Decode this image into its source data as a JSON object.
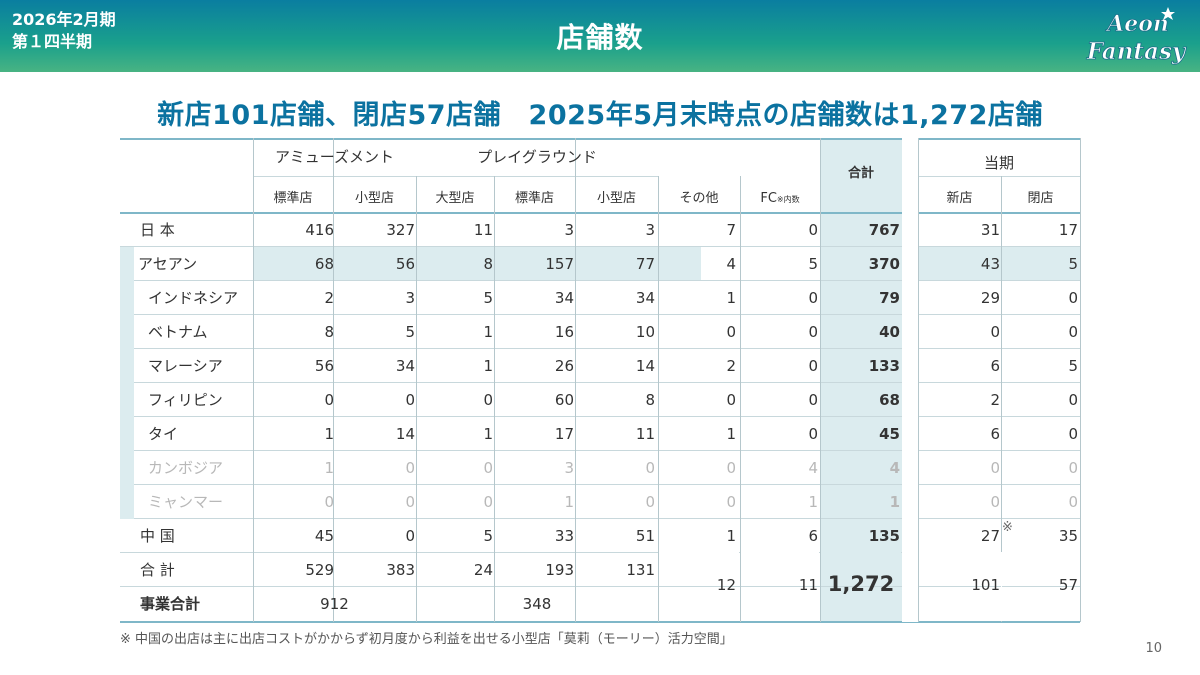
{
  "header": {
    "period_line1": "2026年2月期",
    "period_line2": "第１四半期",
    "title": "店舗数",
    "logo_line1": "Aeon",
    "logo_line2": "Fantasy"
  },
  "headline": "新店101店舗、閉店57店舗　2025年5月末時点の店舗数は1,272店舗",
  "table": {
    "groups": {
      "amusement": "アミューズメント",
      "playground": "プレイグラウンド",
      "other": "その他",
      "fc": "FC",
      "fc_note": "※内数",
      "total": "合計",
      "current": "当期"
    },
    "subheaders": {
      "amuse_std": "標準店",
      "amuse_small": "小型店",
      "play_large": "大型店",
      "play_std": "標準店",
      "play_small": "小型店",
      "new": "新店",
      "closed": "閉店"
    },
    "rows": [
      {
        "label": "日 本",
        "values": [
          "416",
          "327",
          "11",
          "3",
          "3",
          "7",
          "0",
          "767",
          "31",
          "17"
        ]
      },
      {
        "label": "アセアン",
        "values": [
          "68",
          "56",
          "8",
          "157",
          "77",
          "4",
          "5",
          "370",
          "43",
          "5"
        ]
      },
      {
        "label": "インドネシア",
        "values": [
          "2",
          "3",
          "5",
          "34",
          "34",
          "1",
          "0",
          "79",
          "29",
          "0"
        ]
      },
      {
        "label": "ベトナム",
        "values": [
          "8",
          "5",
          "1",
          "16",
          "10",
          "0",
          "0",
          "40",
          "0",
          "0"
        ]
      },
      {
        "label": "マレーシア",
        "values": [
          "56",
          "34",
          "1",
          "26",
          "14",
          "2",
          "0",
          "133",
          "6",
          "5"
        ]
      },
      {
        "label": "フィリピン",
        "values": [
          "0",
          "0",
          "0",
          "60",
          "8",
          "0",
          "0",
          "68",
          "2",
          "0"
        ]
      },
      {
        "label": "タイ",
        "values": [
          "1",
          "14",
          "1",
          "17",
          "11",
          "1",
          "0",
          "45",
          "6",
          "0"
        ]
      },
      {
        "label": "カンボジア",
        "values": [
          "1",
          "0",
          "0",
          "3",
          "0",
          "0",
          "4",
          "4",
          "0",
          "0"
        ]
      },
      {
        "label": "ミャンマー",
        "values": [
          "0",
          "0",
          "0",
          "1",
          "0",
          "0",
          "1",
          "1",
          "0",
          "0"
        ]
      },
      {
        "label": "中 国",
        "values": [
          "45",
          "0",
          "5",
          "33",
          "51",
          "1",
          "6",
          "135",
          "27",
          "35"
        ],
        "note_mark": "※"
      },
      {
        "label": "合 計",
        "values": [
          "529",
          "383",
          "24",
          "193",
          "131"
        ]
      }
    ],
    "summary": {
      "label": "事業合計",
      "amusement": "912",
      "playground": "348",
      "other": "12",
      "fc": "11",
      "total": "1,272",
      "new": "101",
      "closed": "57"
    }
  },
  "footnote": "※ 中国の出店は主に出店コストがかからず初月度から利益を出せる小型店「莫莉（モーリー）活力空間」",
  "page_number": "10",
  "colors": {
    "header_top": "#0a7ea0",
    "header_bottom": "#48b383",
    "headline": "#0b72a0",
    "highlight": "#dcecef"
  }
}
